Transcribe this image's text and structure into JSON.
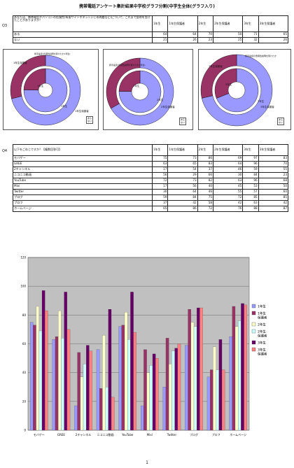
{
  "document": {
    "title": "携帯電話アンケート集計結果中学校グラフ分割(中学生全体(グラフ入り)",
    "page_number": "1"
  },
  "q3": {
    "label": "Q3",
    "question": "あなたは、携帯電話やパソコンの危険性(有害サイトやネットいじめ問題など)について、これまで説明を受けたことがありますか？",
    "headers": [
      "1年生",
      "1年生保護者",
      "2年生",
      "2年生保護者",
      "3年生",
      "3年生保護者"
    ],
    "rows": [
      {
        "label": "ある",
        "values": [
          64,
          64,
          70,
          50,
          71,
          65
        ]
      },
      {
        "label": "ない",
        "values": [
          21,
          26,
          23,
          25,
          32,
          26
        ]
      }
    ]
  },
  "pies": [
    {
      "title": "携帯電話の危険性説明を受けたか(1年生)",
      "inner_label": "1年生",
      "outer_label": "1年生保護者",
      "inner_label2": "1年生",
      "outer_label2": "1年生保護者",
      "legend": [
        "ある",
        "ない"
      ]
    },
    {
      "title": "携帯電話の危険性説明を受けたか(2年生)",
      "inner_label": "2年生",
      "outer_label": "2年生保護者",
      "inner_label2": "2年生",
      "outer_label2": "2年生保護者",
      "legend": [
        "ある",
        "ない"
      ]
    },
    {
      "title": "携帯電話の危険性説明を受けたか",
      "inner_label": "3年生",
      "outer_label": "3年生保護者",
      "inner_label2": "3年生",
      "outer_label2": "3年生保護者",
      "legend": [
        "ある",
        "ない"
      ]
    }
  ],
  "q4": {
    "label": "Q4",
    "question": "以下をご存じですか？【複数回答可】",
    "headers": [
      "1年生",
      "1年生保護者",
      "2年生",
      "2年生保護者",
      "3年生",
      "3年生保護者"
    ],
    "rows": [
      {
        "label": "モバゲー",
        "values": [
          75,
          73,
          86,
          69,
          97,
          83
        ]
      },
      {
        "label": "GREE",
        "values": [
          63,
          65,
          83,
          64,
          96,
          70
        ]
      },
      {
        "label": "2チャンネル",
        "values": [
          17,
          54,
          37,
          46,
          59,
          55
        ]
      },
      {
        "label": "ニコニコ動画",
        "values": [
          56,
          29,
          66,
          30,
          84,
          23
        ]
      },
      {
        "label": "YouTube",
        "values": [
          72,
          73,
          82,
          63,
          96,
          68
        ]
      },
      {
        "label": "Mixi",
        "values": [
          17,
          56,
          40,
          45,
          53,
          50
        ]
      },
      {
        "label": "Twitter",
        "values": [
          30,
          64,
          46,
          55,
          57,
          60
        ]
      },
      {
        "label": "ブログ",
        "values": [
          59,
          84,
          75,
          72,
          85,
          85
        ]
      },
      {
        "label": "プロフ",
        "values": [
          37,
          42,
          58,
          42,
          63,
          42
        ]
      },
      {
        "label": "ホームページ",
        "values": [
          65,
          86,
          72,
          76,
          88,
          87
        ]
      }
    ]
  },
  "chart_data": {
    "type": "bar",
    "categories": [
      "モバゲー",
      "GREE",
      "2チャンネル",
      "ニコニコ動画",
      "YouTube",
      "Mixi",
      "Twitter",
      "ブログ",
      "プロフ",
      "ホームページ"
    ],
    "series": [
      {
        "name": "1年生",
        "color": "#9999ff",
        "values": [
          75,
          63,
          17,
          56,
          72,
          17,
          30,
          59,
          37,
          65
        ]
      },
      {
        "name": "1年生保護者",
        "color": "#993366",
        "values": [
          73,
          65,
          54,
          29,
          73,
          56,
          64,
          84,
          42,
          86
        ]
      },
      {
        "name": "2年生",
        "color": "#ffffcc",
        "values": [
          86,
          83,
          37,
          66,
          82,
          40,
          46,
          75,
          58,
          72
        ]
      },
      {
        "name": "2年生保護者",
        "color": "#ccffff",
        "values": [
          69,
          64,
          46,
          30,
          63,
          45,
          55,
          72,
          42,
          76
        ]
      },
      {
        "name": "3年生",
        "color": "#660066",
        "values": [
          97,
          96,
          59,
          84,
          96,
          53,
          57,
          85,
          63,
          88
        ]
      },
      {
        "name": "3年生保護者",
        "color": "#ff8080",
        "values": [
          83,
          70,
          55,
          23,
          68,
          50,
          60,
          85,
          42,
          87
        ]
      }
    ],
    "ylim": [
      0,
      120
    ],
    "yticks": [
      0,
      20,
      40,
      60,
      80,
      100,
      120
    ],
    "grid": true,
    "legend_position": "right",
    "plot_background": "#c0c0c0"
  },
  "colors": {
    "pie_yes": "#9999ff",
    "pie_no": "#993366"
  }
}
